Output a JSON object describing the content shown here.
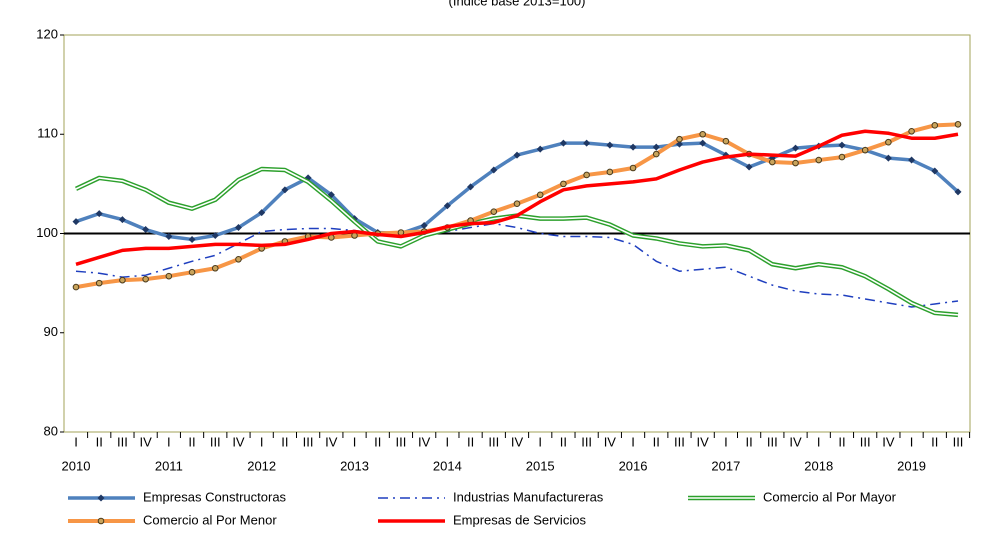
{
  "chart_data": {
    "type": "line",
    "subtitle": "(Índice base 2013=100)",
    "categories": [
      "I",
      "II",
      "III",
      "IV",
      "I",
      "II",
      "III",
      "IV",
      "I",
      "II",
      "III",
      "IV",
      "I",
      "II",
      "III",
      "IV",
      "I",
      "II",
      "III",
      "IV",
      "I",
      "II",
      "III",
      "IV",
      "I",
      "II",
      "III",
      "IV",
      "I",
      "II",
      "III",
      "IV",
      "I",
      "II",
      "III",
      "IV",
      "I",
      "II",
      "III"
    ],
    "year_labels": [
      "2010",
      null,
      null,
      null,
      "2011",
      null,
      null,
      null,
      "2012",
      null,
      null,
      null,
      "2013",
      null,
      null,
      null,
      "2014",
      null,
      null,
      null,
      "2015",
      null,
      null,
      null,
      "2016",
      null,
      null,
      null,
      "2017",
      null,
      null,
      null,
      "2018",
      null,
      null,
      null,
      "2019",
      null,
      null
    ],
    "ylim": [
      80,
      120
    ],
    "yticks": [
      80,
      90,
      100,
      110,
      120
    ],
    "reference_line": 100,
    "series": [
      {
        "name": "Empresas Constructoras",
        "color": "#4f81bd",
        "marker": "diamond",
        "values": [
          101.2,
          102.0,
          101.4,
          100.4,
          99.7,
          99.4,
          99.8,
          100.6,
          102.1,
          104.4,
          105.6,
          103.9,
          101.5,
          100.1,
          100.0,
          100.8,
          102.8,
          104.7,
          106.4,
          107.9,
          108.5,
          109.1,
          109.1,
          108.9,
          108.7,
          108.7,
          109.0,
          109.1,
          107.9,
          106.7,
          107.6,
          108.6,
          108.8,
          108.9,
          108.4,
          107.6,
          107.4,
          106.3,
          104.2
        ]
      },
      {
        "name": "Industrias Manufactureras",
        "color": "#1f3fbf",
        "dash": "dash-dot",
        "values": [
          96.2,
          96.0,
          95.6,
          95.8,
          96.5,
          97.2,
          97.8,
          99.0,
          100.2,
          100.4,
          100.5,
          100.5,
          100.3,
          100.0,
          99.8,
          100.0,
          100.2,
          100.6,
          101.0,
          100.6,
          100.0,
          99.7,
          99.7,
          99.6,
          98.9,
          97.2,
          96.2,
          96.4,
          96.6,
          95.7,
          94.8,
          94.2,
          93.9,
          93.8,
          93.4,
          93.0,
          92.6,
          92.9,
          93.2
        ]
      },
      {
        "name": "Comercio al Por Mayor",
        "color": "#2ca02c",
        "double": true,
        "values": [
          104.5,
          105.6,
          105.3,
          104.4,
          103.1,
          102.5,
          103.4,
          105.4,
          106.5,
          106.4,
          105.2,
          103.3,
          101.2,
          99.2,
          98.7,
          99.8,
          100.4,
          101.0,
          101.5,
          101.8,
          101.5,
          101.5,
          101.6,
          100.9,
          99.8,
          99.5,
          99.0,
          98.7,
          98.8,
          98.3,
          96.9,
          96.5,
          96.9,
          96.6,
          95.7,
          94.4,
          93.0,
          92.0,
          91.8
        ]
      },
      {
        "name": "Comercio al Por Menor",
        "color": "#f79646",
        "marker": "circle",
        "values": [
          94.6,
          95.0,
          95.3,
          95.4,
          95.7,
          96.1,
          96.5,
          97.4,
          98.5,
          99.2,
          99.7,
          99.6,
          99.8,
          100.0,
          100.1,
          100.2,
          100.6,
          101.3,
          102.2,
          103.0,
          103.9,
          105.0,
          105.9,
          106.2,
          106.6,
          108.0,
          109.5,
          110.0,
          109.3,
          108.0,
          107.2,
          107.1,
          107.4,
          107.7,
          108.4,
          109.2,
          110.3,
          110.9,
          111.0
        ]
      },
      {
        "name": "Empresas de Servicios",
        "color": "#ff0000",
        "values": [
          96.9,
          97.6,
          98.3,
          98.5,
          98.5,
          98.7,
          98.9,
          98.9,
          98.8,
          98.9,
          99.4,
          100.0,
          100.2,
          99.9,
          99.7,
          100.1,
          100.7,
          101.0,
          101.1,
          101.8,
          103.2,
          104.4,
          104.8,
          105.0,
          105.2,
          105.5,
          106.4,
          107.2,
          107.7,
          108.0,
          107.9,
          107.8,
          108.8,
          109.9,
          110.3,
          110.1,
          109.6,
          109.6,
          110.0
        ]
      }
    ]
  }
}
